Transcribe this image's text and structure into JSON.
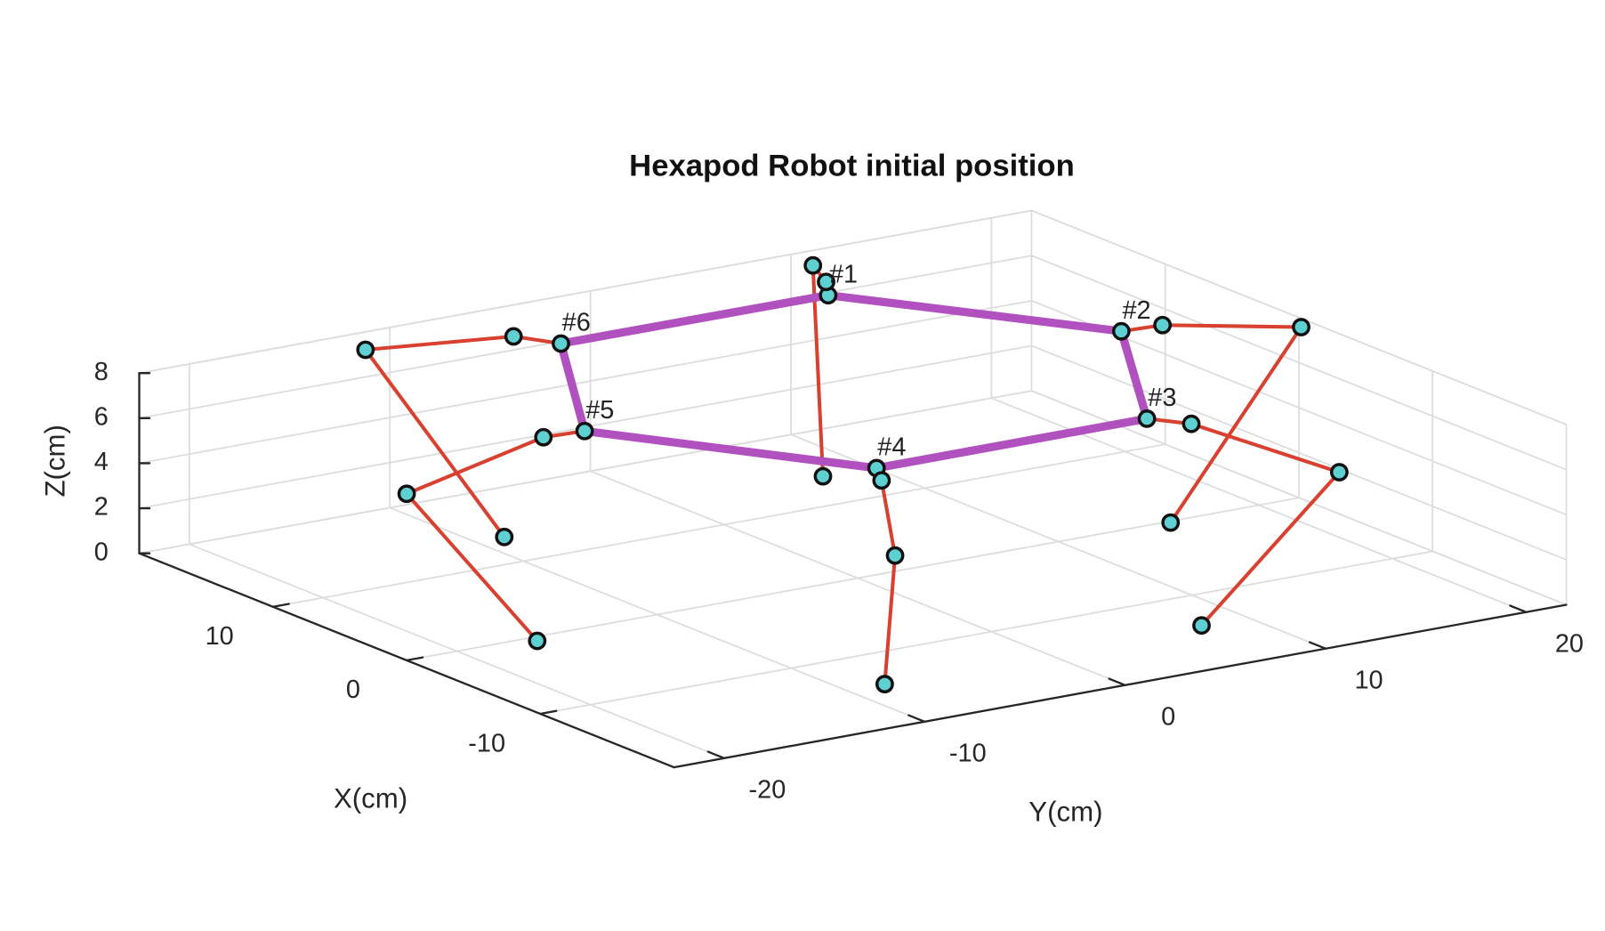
{
  "chart_data": {
    "type": "line3d",
    "title": "Hexapod Robot initial position",
    "xlabel": "X(cm)",
    "ylabel": "Y(cm)",
    "zlabel": "Z(cm)",
    "xlim": [
      -20,
      20
    ],
    "ylim": [
      -22.5,
      22
    ],
    "zlim": [
      0,
      8
    ],
    "xticks": [
      -10,
      0,
      10
    ],
    "yticks": [
      -20,
      -10,
      0,
      10,
      20
    ],
    "zticks": [
      0,
      2,
      4,
      6,
      8
    ],
    "grid": true,
    "leg_color": "#d8412f",
    "body_color": "#b150bf",
    "marker_color": "#5fd0d2",
    "legs": [
      {
        "label": "#1",
        "x": [
          16.78,
          18.54,
          18.07,
          13.9
        ],
        "y": [
          9.71,
          10.78,
          9.81,
          7.53
        ],
        "z": [
          7,
          7,
          8,
          0
        ]
      },
      {
        "label": "#2",
        "x": [
          5.29,
          5.12,
          -1.28,
          -0.18
        ],
        "y": [
          16.67,
          18.61,
          21.26,
          15.48
        ],
        "z": [
          7,
          7,
          8,
          0
        ]
      },
      {
        "label": "#3",
        "x": [
          -6.54,
          -8.24,
          -20.81,
          -14.12
        ],
        "y": [
          10.06,
          11.14,
          10.14,
          7.73
        ],
        "z": [
          7,
          7,
          8,
          0
        ]
      },
      {
        "label": "#4",
        "x": [
          -6.56,
          -8.26,
          -21.12,
          -14.24
        ],
        "y": [
          -3.44,
          -4.32,
          -12.22,
          -8.15
        ],
        "z": [
          7,
          7,
          8,
          0
        ]
      },
      {
        "label": "#5",
        "x": [
          5.03,
          5.2,
          -1.76,
          -0.56
        ],
        "y": [
          -10.27,
          -12.21,
          -23.67,
          -16.36
        ],
        "z": [
          7,
          7,
          8,
          0
        ]
      },
      {
        "label": "#6",
        "x": [
          16.82,
          18.85,
          17.7,
          13.56
        ],
        "y": [
          -3.59,
          -4.6,
          -12.75,
          -8.59
        ],
        "z": [
          7,
          7,
          8,
          0
        ]
      }
    ]
  }
}
